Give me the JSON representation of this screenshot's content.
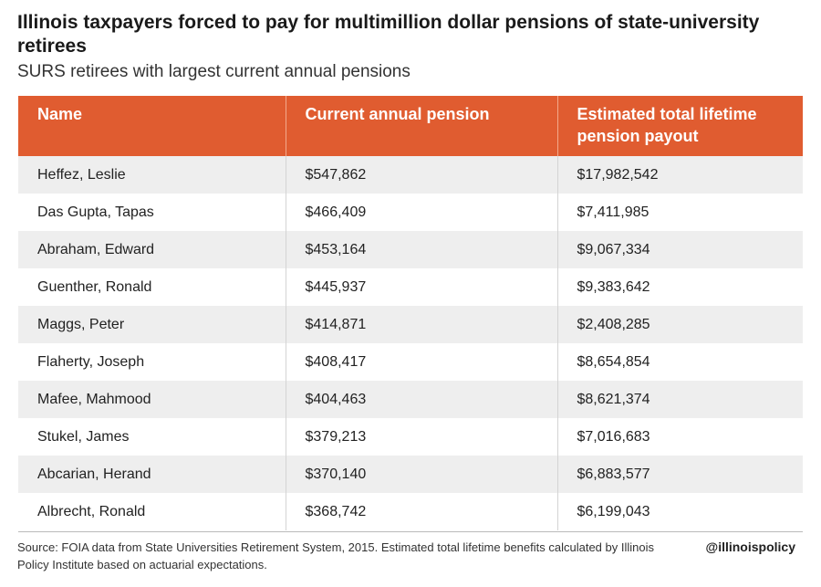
{
  "chart_data": {
    "type": "table",
    "title": "Illinois taxpayers forced to pay for multimillion dollar pensions of state-university retirees",
    "subtitle": "SURS retirees with largest current annual pensions",
    "columns": [
      "Name",
      "Current annual pension",
      "Estimated total lifetime pension payout"
    ],
    "rows": [
      [
        "Heffez, Leslie",
        "$547,862",
        "$17,982,542"
      ],
      [
        "Das Gupta, Tapas",
        "$466,409",
        "$7,411,985"
      ],
      [
        "Abraham, Edward",
        "$453,164",
        "$9,067,334"
      ],
      [
        "Guenther, Ronald",
        "$445,937",
        "$9,383,642"
      ],
      [
        "Maggs, Peter",
        "$414,871",
        "$2,408,285"
      ],
      [
        "Flaherty, Joseph",
        "$408,417",
        "$8,654,854"
      ],
      [
        "Mafee, Mahmood",
        "$404,463",
        "$8,621,374"
      ],
      [
        "Stukel, James",
        "$379,213",
        "$7,016,683"
      ],
      [
        "Abcarian, Herand",
        "$370,140",
        "$6,883,577"
      ],
      [
        "Albrecht, Ronald",
        "$368,742",
        "$6,199,043"
      ]
    ],
    "source": "Source: FOIA data from State Universities Retirement System, 2015. Estimated total lifetime benefits calculated by Illinois Policy Institute based on actuarial expectations.",
    "brand": "@illinoispolicy"
  },
  "colors": {
    "header_background": "#e05c30",
    "header_text": "#ffffff",
    "row_stripe": "#eeeeee"
  }
}
